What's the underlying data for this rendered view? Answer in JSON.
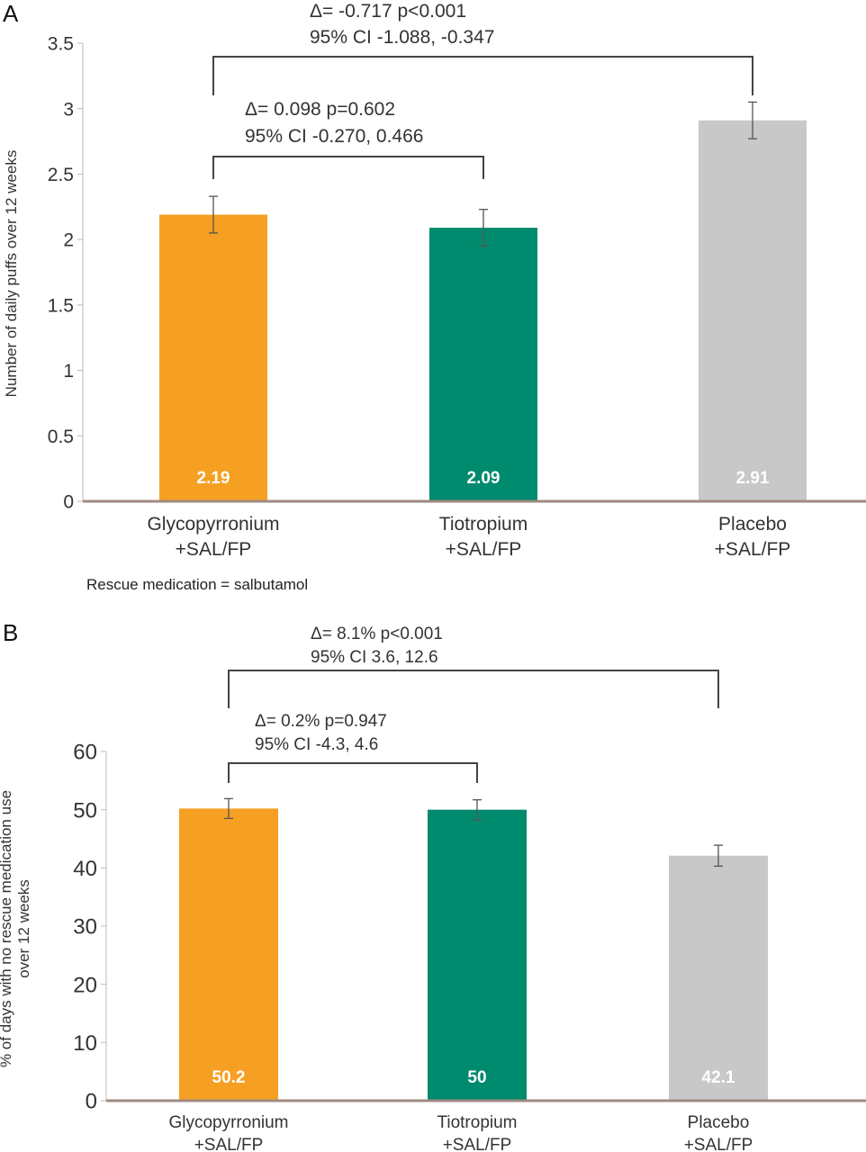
{
  "chart_data": [
    {
      "type": "bar",
      "panel_label": "A",
      "ylabel": "Number of daily puffs over 12 weeks",
      "ylim": [
        0,
        3.5
      ],
      "yticks": [
        "0",
        "0.5",
        "1",
        "1.5",
        "2",
        "2.5",
        "3",
        "3.5"
      ],
      "categories": [
        {
          "line1": "Glycopyrronium",
          "line2": "+SAL/FP"
        },
        {
          "line1": "Tiotropium",
          "line2": "+SAL/FP"
        },
        {
          "line1": "Placebo",
          "line2": "+SAL/FP"
        }
      ],
      "values": [
        2.19,
        2.09,
        2.91
      ],
      "value_labels": [
        "2.19",
        "2.09",
        "2.91"
      ],
      "errors": [
        [
          2.05,
          2.33
        ],
        [
          1.95,
          2.23
        ],
        [
          2.77,
          3.05
        ]
      ],
      "colors": [
        "#f5a023",
        "#008a6e",
        "#c8c8c8"
      ],
      "comparisons": [
        {
          "line1": "Δ= -0.717 p<0.001",
          "line2": "95% CI -1.088, -0.347",
          "from": 0,
          "to": 2
        },
        {
          "line1": "Δ= 0.098  p=0.602",
          "line2": "95% CI -0.270, 0.466",
          "from": 0,
          "to": 1
        }
      ],
      "note": "Rescue medication = salbutamol",
      "grid": false
    },
    {
      "type": "bar",
      "panel_label": "B",
      "ylabel_line1": "% of days with no rescue medication use",
      "ylabel_line2": "over 12 weeks",
      "ylim": [
        0,
        60
      ],
      "yticks": [
        "0",
        "10",
        "20",
        "30",
        "40",
        "50",
        "60"
      ],
      "categories": [
        {
          "line1": "Glycopyrronium",
          "line2": "+SAL/FP"
        },
        {
          "line1": "Tiotropium",
          "line2": "+SAL/FP"
        },
        {
          "line1": "Placebo",
          "line2": "+SAL/FP"
        }
      ],
      "values": [
        50.2,
        50,
        42.1
      ],
      "value_labels": [
        "50.2",
        "50",
        "42.1"
      ],
      "errors": [
        [
          48.5,
          51.9
        ],
        [
          48.3,
          51.7
        ],
        [
          40.3,
          43.9
        ]
      ],
      "colors": [
        "#f5a023",
        "#008a6e",
        "#c8c8c8"
      ],
      "comparisons": [
        {
          "line1": "Δ= 8.1%   p<0.001",
          "line2": "95% CI 3.6, 12.6",
          "from": 0,
          "to": 2
        },
        {
          "line1": "Δ= 0.2%  p=0.947",
          "line2": "95% CI -4.3, 4.6",
          "from": 0,
          "to": 1
        }
      ],
      "grid": false
    }
  ]
}
